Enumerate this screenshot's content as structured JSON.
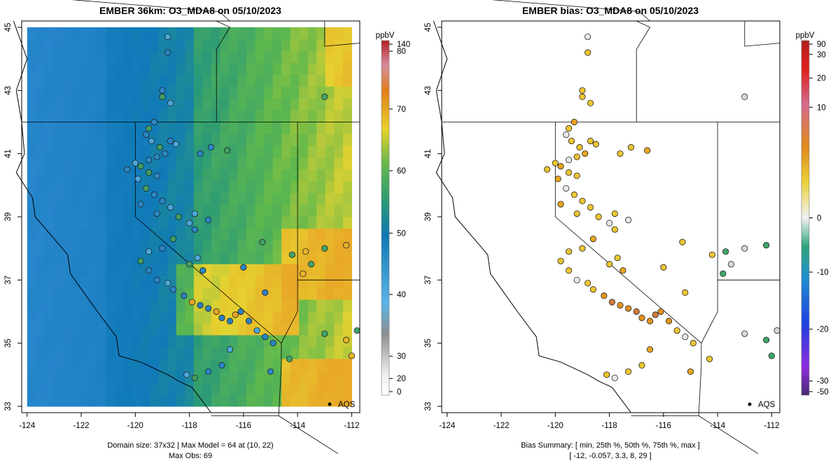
{
  "left_panel": {
    "title": "EMBER 36km: O3_MDA8 on 05/10/2023",
    "footer_line1": "Domain size: 37x32 | Max Model = 64 at (10, 22)",
    "footer_line2": "Max Obs: 69",
    "legend_unit": "ppbV",
    "legend_ticks": [
      "140",
      "80",
      "70",
      "60",
      "50",
      "40",
      "30",
      "20",
      "0"
    ],
    "marker_label": "AQS"
  },
  "right_panel": {
    "title": "EMBER bias: O3_MDA8 on 05/10/2023",
    "footer_line1": "Bias Summary: [ min, 25th %, 50th %, 75th %, max ]",
    "footer_line2": "[ -12,   -0.057,   3.3,   8,   29 ]",
    "legend_unit": "ppbV",
    "legend_ticks": [
      "90",
      "30",
      "20",
      "10",
      "0",
      "-10",
      "-20",
      "-30",
      "-50"
    ],
    "marker_label": "AQS"
  },
  "axes": {
    "x_ticks": [
      "-124",
      "-122",
      "-120",
      "-118",
      "-116",
      "-114",
      "-112"
    ],
    "y_ticks": [
      "45",
      "43",
      "41",
      "39",
      "37",
      "35",
      "33"
    ],
    "lon_range": [
      -124.2,
      -111.7
    ],
    "lat_range": [
      32.8,
      45.2
    ]
  },
  "colors": {
    "model_low": "#3a95d0",
    "model_mid": "#3f9f62",
    "model_high": "#e9cf2f",
    "bias_positive": "#e6b51f",
    "bias_negative": "#3fa56a"
  }
}
